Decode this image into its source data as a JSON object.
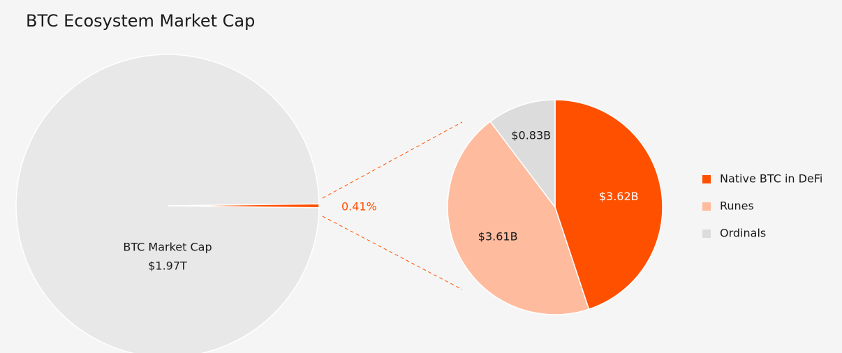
{
  "chart_data": [
    {
      "type": "pie",
      "title": "BTC Ecosystem Market Cap",
      "categories": [
        "BTC Market Cap"
      ],
      "values": [
        1.97
      ],
      "value_labels": [
        "$1.97T"
      ],
      "color": "#e8e8e8",
      "share": 0.41,
      "share_label": "0.41%",
      "share_color": "#ff5000"
    },
    {
      "type": "pie",
      "categories": [
        "Native BTC in DeFi",
        "Runes",
        "Ordinals"
      ],
      "values": [
        3.62,
        3.61,
        0.83
      ],
      "value_labels": [
        "$3.62B",
        "$3.61B",
        "$0.83B"
      ],
      "colors": [
        "#ff5000",
        "#ffbb9e",
        "#dcdcdc"
      ],
      "legend": "right"
    }
  ]
}
